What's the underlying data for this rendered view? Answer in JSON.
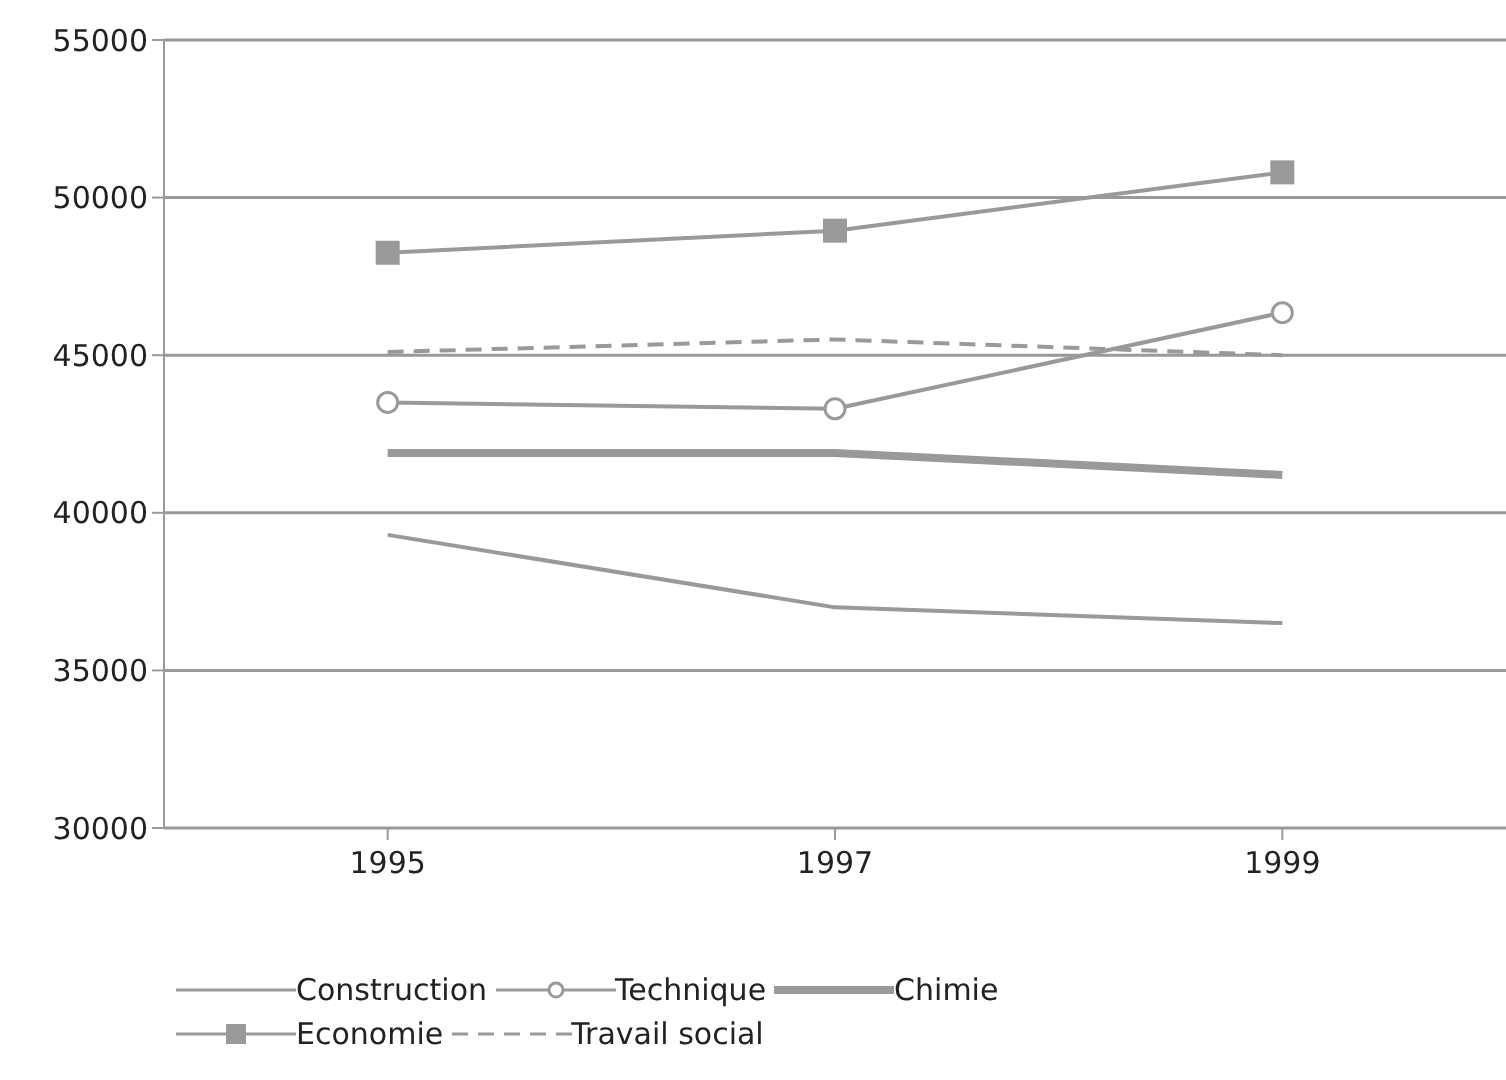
{
  "chart_data": {
    "type": "line",
    "categories": [
      "1995",
      "1997",
      "1999"
    ],
    "ylim": [
      30000,
      55000
    ],
    "yticks": [
      30000,
      35000,
      40000,
      45000,
      50000,
      55000
    ],
    "grid": "y",
    "legend": "bottom",
    "series": [
      {
        "name": "Construction",
        "color": "#999999",
        "values": [
          39300,
          37000,
          36500
        ],
        "marker": "none",
        "line_style": "solid"
      },
      {
        "name": "Technique",
        "color": "#999999",
        "values": [
          43500,
          43300,
          46350
        ],
        "marker": "circle",
        "line_style": "solid"
      },
      {
        "name": "Chimie",
        "color": "#999999",
        "values": [
          41900,
          41900,
          41200
        ],
        "marker": "none",
        "line_style": "solid"
      },
      {
        "name": "Economie",
        "color": "#999999",
        "values": [
          48250,
          48950,
          50800
        ],
        "marker": "square",
        "line_style": "solid"
      },
      {
        "name": "Travail social",
        "color": "#999999",
        "values": [
          45100,
          45500,
          45000
        ],
        "marker": "none",
        "line_style": "dashed"
      }
    ]
  }
}
